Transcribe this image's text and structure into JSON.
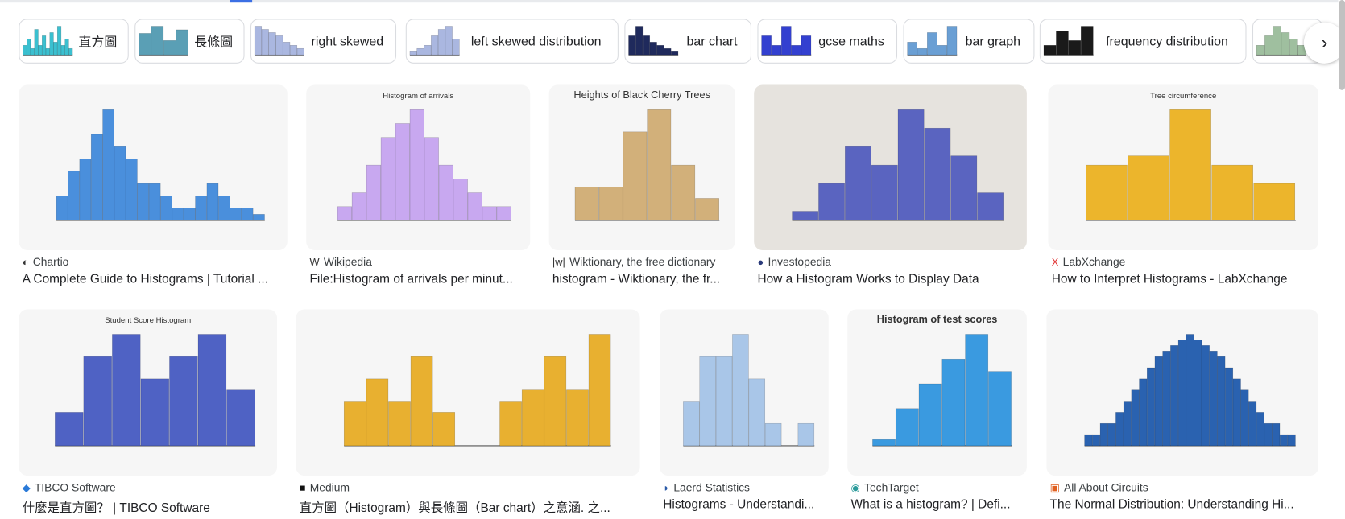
{
  "chips": [
    {
      "label": "直方圖",
      "color": "#3bc0d0"
    },
    {
      "label": "長條圖",
      "color": "#5a9fb5"
    },
    {
      "label": "right skewed",
      "color": "#aab7e0"
    },
    {
      "label": "left skewed distribution",
      "color": "#aab7e0"
    },
    {
      "label": "bar chart",
      "color": "#1f2a5c"
    },
    {
      "label": "gcse maths",
      "color": "#3340d0"
    },
    {
      "label": "bar graph",
      "color": "#6a9fd4"
    },
    {
      "label": "frequency distribution",
      "color": "#1a1a1a"
    },
    {
      "label": "",
      "color": "#9fbf9f"
    }
  ],
  "next_icon": "chevron-right-icon",
  "results": [
    {
      "source": "Chartio",
      "icon": "◐",
      "icon_color": "#333",
      "title": "A Complete Guide to Histograms | Tutorial ...",
      "color": "#4a8fdc",
      "thumb_title": "",
      "bg": "#f6f6f6"
    },
    {
      "source": "Wikipedia",
      "icon": "W",
      "icon_color": "#333",
      "title": "File:Histogram of arrivals per minut...",
      "color": "#c8a8f0",
      "thumb_title": "Histogram of arrivals",
      "bg": "#f6f6f6"
    },
    {
      "source": "Wiktionary, the free dictionary",
      "icon": "|w|",
      "icon_color": "#333",
      "title": "histogram - Wiktionary, the fr...",
      "color": "#d2b07a",
      "thumb_title": "Heights of Black Cherry Trees",
      "bg": "#f6f6f6"
    },
    {
      "source": "Investopedia",
      "icon": "●",
      "icon_color": "#2a3a7a",
      "title": "How a Histogram Works to Display Data",
      "color": "#5a64c0",
      "thumb_title": "",
      "bg": "#e6e3de"
    },
    {
      "source": "LabXchange",
      "icon": "X",
      "icon_color": "#e03030",
      "title": "How to Interpret Histograms - LabXchange",
      "color": "#ecb52c",
      "thumb_title": "Tree circumference",
      "bg": "#f6f6f6"
    },
    {
      "source": "TIBCO Software",
      "icon": "◆",
      "icon_color": "#2a7ad8",
      "title": "什麼是直方圖？ | TIBCO Software",
      "color": "#4f62c4",
      "thumb_title": "Student Score Histogram",
      "bg": "#f6f6f6"
    },
    {
      "source": "Medium",
      "icon": "■",
      "icon_color": "#111",
      "title": "直方圖（Histogram）與長條圖（Bar chart）之意涵. 之...",
      "color": "#e8b030",
      "thumb_title": "",
      "bg": "#f6f6f6"
    },
    {
      "source": "Laerd Statistics",
      "icon": "◗",
      "icon_color": "#2a5aa8",
      "title": "Histograms - Understandi...",
      "color": "#a9c6e8",
      "thumb_title": "",
      "bg": "#f6f6f6"
    },
    {
      "source": "TechTarget",
      "icon": "◉",
      "icon_color": "#2a9a9a",
      "title": "What is a histogram? | Defi...",
      "color": "#3a9ae0",
      "thumb_title": "Histogram of test scores",
      "bg": "#f6f6f6"
    },
    {
      "source": "All About Circuits",
      "icon": "▣",
      "icon_color": "#e06020",
      "title": "The Normal Distribution: Understanding Hi...",
      "color": "#2a62b0",
      "thumb_title": "",
      "bg": "#f6f6f6"
    }
  ]
}
